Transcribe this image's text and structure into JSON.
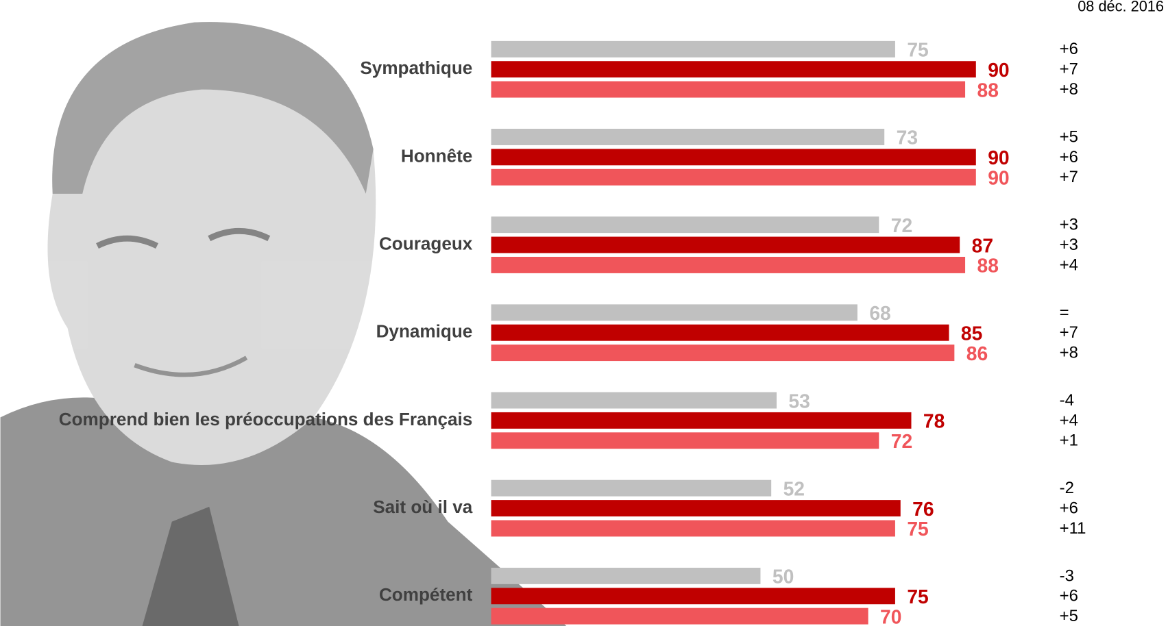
{
  "chart_data": {
    "type": "bar",
    "orientation": "horizontal",
    "annotation": "08 déc. 2016",
    "categories": [
      "Sympathique",
      "Honnête",
      "Courageux",
      "Dynamique",
      "Comprend bien les préoccupations des Français",
      "Sait où il va",
      "Compétent"
    ],
    "series": [
      {
        "color": "#c0c0c0",
        "label_color": "#c0c0c0",
        "values": [
          75,
          73,
          72,
          68,
          53,
          52,
          50
        ],
        "change_labels": [
          "+6",
          "+5",
          "+3",
          "=",
          "-4",
          "-2",
          "-3"
        ]
      },
      {
        "color": "#c00000",
        "label_color": "#c00000",
        "values": [
          90,
          90,
          87,
          85,
          78,
          76,
          75
        ],
        "change_labels": [
          "+7",
          "+6",
          "+3",
          "+7",
          "+4",
          "+6",
          "+6"
        ]
      },
      {
        "color": "#f0555a",
        "label_color": "#f0555a",
        "values": [
          88,
          90,
          88,
          86,
          72,
          75,
          70
        ],
        "change_labels": [
          "+8",
          "+7",
          "+4",
          "+8",
          "+1",
          "+11",
          "+5"
        ]
      }
    ]
  }
}
